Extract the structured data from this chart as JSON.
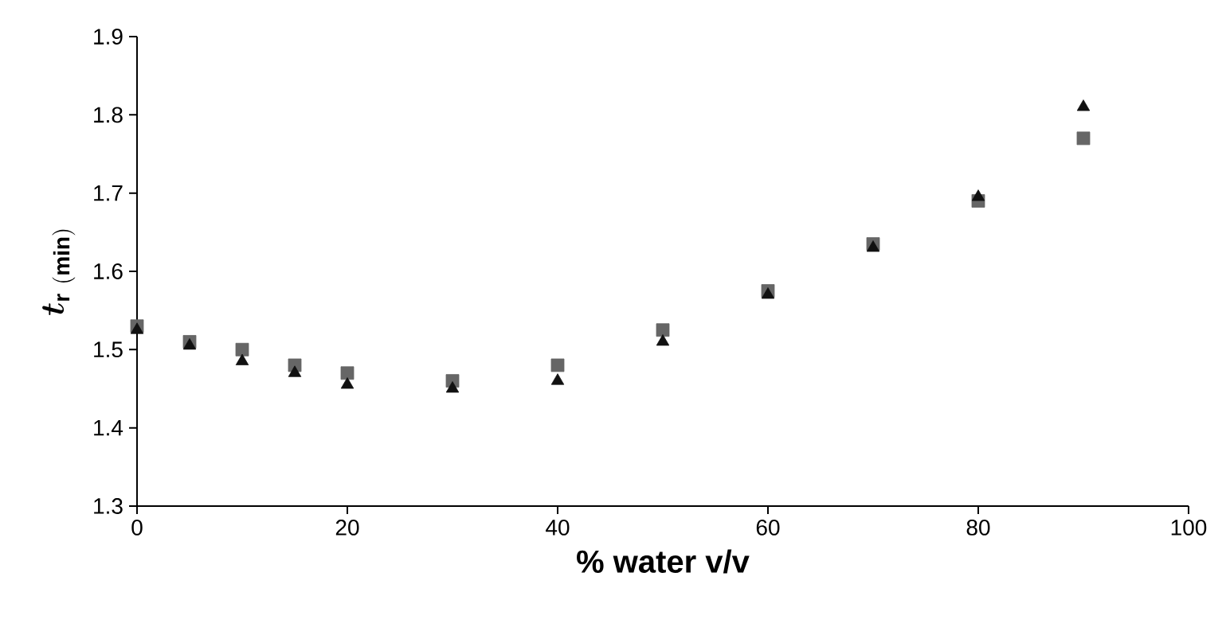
{
  "chart_data": {
    "type": "scatter",
    "xlabel": "% water v/v",
    "ylabel": "\\bm{t}_{\\mathbf{r\\ (min)}}",
    "x": [
      0,
      5,
      10,
      15,
      20,
      30,
      40,
      50,
      60,
      70,
      80,
      90
    ],
    "series": [
      {
        "color": "#666666",
        "marker": "square",
        "values": [
          1.53,
          1.51,
          1.5,
          1.48,
          1.47,
          1.46,
          1.48,
          1.525,
          1.575,
          1.635,
          1.69,
          1.77
        ]
      },
      {
        "color": "#111111",
        "marker": "triangle",
        "values": [
          1.525,
          1.505,
          1.485,
          1.47,
          1.455,
          1.45,
          1.46,
          1.51,
          1.57,
          1.63,
          1.695,
          1.81
        ]
      }
    ],
    "xlim": [
      0,
      100
    ],
    "ylim": [
      1.3,
      1.9
    ],
    "xticks": [
      0,
      20,
      40,
      60,
      80,
      100
    ],
    "yticks": [
      1.3,
      1.4,
      1.5,
      1.6,
      1.7,
      1.8,
      1.9
    ],
    "grid": false
  }
}
